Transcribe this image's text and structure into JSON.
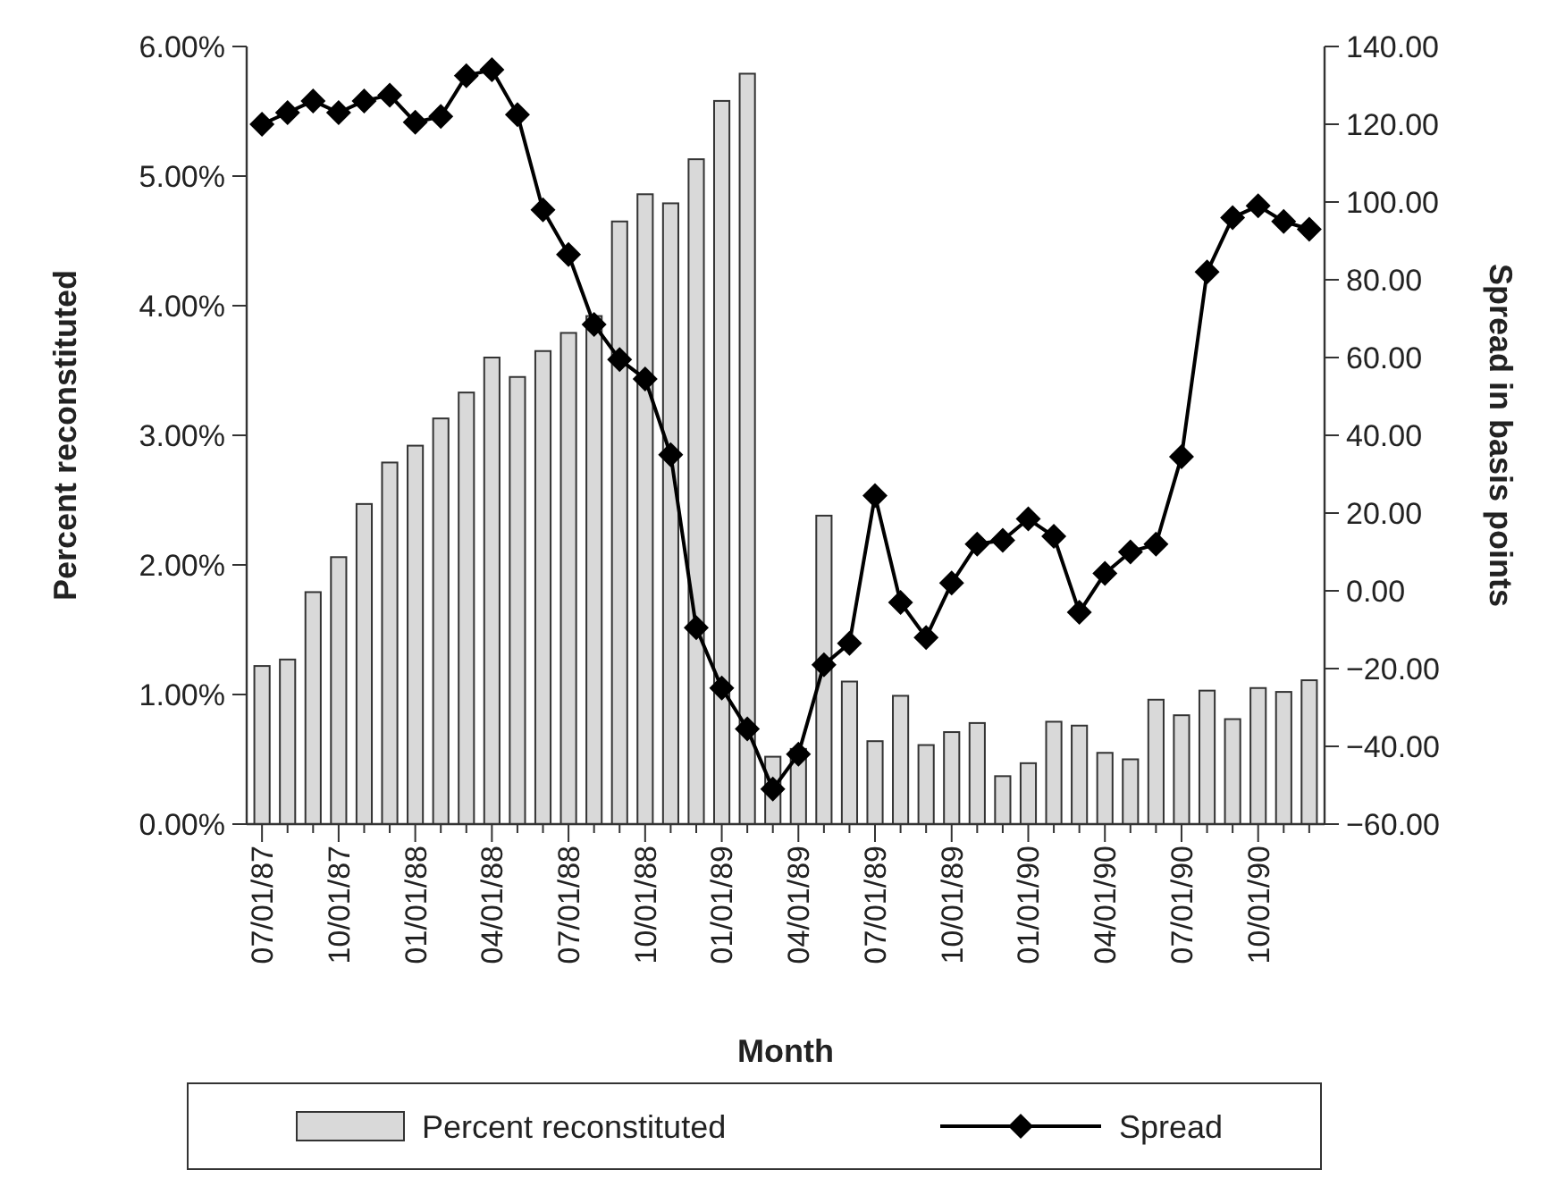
{
  "chart_data": {
    "type": "bar",
    "xlabel": "Month",
    "ylabel": "Percent reconstituted",
    "y2label": "Spread in basis points",
    "categories": [
      "07/01/87",
      null,
      null,
      "10/01/87",
      null,
      null,
      "01/01/88",
      null,
      null,
      "04/01/88",
      null,
      null,
      "07/01/88",
      null,
      null,
      "10/01/88",
      null,
      null,
      "01/01/89",
      null,
      null,
      "04/01/89",
      null,
      null,
      "07/01/89",
      null,
      null,
      "10/01/89",
      null,
      null,
      "01/01/90",
      null,
      null,
      "04/01/90",
      null,
      null,
      "07/01/90",
      null,
      null,
      "10/01/90",
      null,
      null
    ],
    "series": [
      {
        "name": "Percent reconstituted",
        "color": "#d9d9d9",
        "values": [
          1.22,
          1.27,
          1.79,
          2.06,
          2.47,
          2.79,
          2.92,
          3.13,
          3.33,
          3.6,
          3.45,
          3.65,
          3.79,
          3.92,
          4.65,
          4.86,
          4.79,
          5.13,
          5.58,
          5.79,
          0.52,
          0.58,
          2.38,
          1.1,
          0.64,
          0.99,
          0.61,
          0.71,
          0.78,
          0.37,
          0.47,
          0.79,
          0.76,
          0.55,
          0.5,
          0.96,
          0.84,
          1.03,
          0.81,
          1.05,
          1.02,
          1.11
        ]
      },
      {
        "name": "Spread",
        "type": "line",
        "axis": "y2",
        "color": "#000000",
        "marker": "diamond",
        "line_style": "solid",
        "values": [
          120,
          123,
          126,
          123,
          126,
          127.5,
          120.5,
          122,
          132.5,
          134,
          122.5,
          98,
          86.5,
          68.5,
          59.5,
          54.5,
          35,
          -9.5,
          -25,
          -35.5,
          -51,
          -42,
          -19,
          -13.5,
          24.5,
          -3,
          -12,
          2,
          12,
          13,
          18.5,
          14,
          -5.5,
          4.5,
          10,
          12,
          34.5,
          82,
          96,
          99,
          95,
          93
        ]
      }
    ],
    "ylim": [
      0,
      6
    ],
    "yticks": [
      {
        "value": 0,
        "label": "0.00%"
      },
      {
        "value": 1,
        "label": "1.00%"
      },
      {
        "value": 2,
        "label": "2.00%"
      },
      {
        "value": 3,
        "label": "3.00%"
      },
      {
        "value": 4,
        "label": "4.00%"
      },
      {
        "value": 5,
        "label": "5.00%"
      },
      {
        "value": 6,
        "label": "6.00%"
      }
    ],
    "y2lim": [
      -60,
      140
    ],
    "y2ticks": [
      {
        "value": -60,
        "label": "−60.00"
      },
      {
        "value": -40,
        "label": "−40.00"
      },
      {
        "value": -20,
        "label": "−20.00"
      },
      {
        "value": 0,
        "label": "0.00"
      },
      {
        "value": 20,
        "label": "20.00"
      },
      {
        "value": 40,
        "label": "40.00"
      },
      {
        "value": 60,
        "label": "60.00"
      },
      {
        "value": 80,
        "label": "80.00"
      },
      {
        "value": 100,
        "label": "100.00"
      },
      {
        "value": 120,
        "label": "120.00"
      },
      {
        "value": 140,
        "label": "140.00"
      }
    ],
    "grid": false,
    "legend": "bottom"
  }
}
